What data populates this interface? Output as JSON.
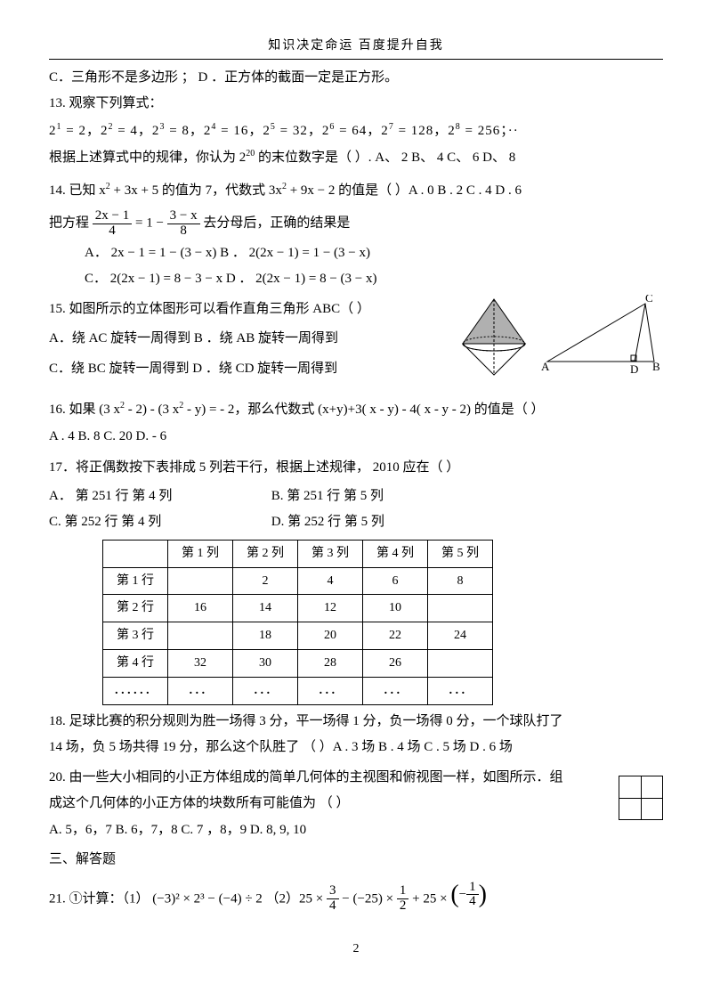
{
  "header": "知识决定命运   百度提升自我",
  "q12CD": "C．三角形不是多边形    ；    D    ．正方体的截面一定是正方形。",
  "q13_title": "13.  观察下列算式：",
  "q13_line": "2¹ = 2，2² = 4，2³ = 8，2⁴ = 16，2⁵ = 32，2⁶ = 64，2⁷ = 128，2⁸ = 256；··",
  "q13_ask": "根据上述算式中的规律，你认为    2²⁰ 的末位数字是（       ）. A、 2  B、 4  C、 6  D、 8",
  "q14": "14. 已知  x² + 3x + 5 的值为  7，代数式  3x² + 9x − 2 的值是（     ）A . 0   B   . 2   C   . 4   D  . 6",
  "qFrac_lead": "把方程",
  "qFrac_mid": "= 1 −",
  "qFrac_tail": "去分母后，正确的结果是",
  "qFrac_A": "A．  2x − 1 = 1 − (3 − x)       B     ．  2(2x − 1) = 1 − (3 − x)",
  "qFrac_C": "C．  2(2x − 1) = 8 − 3 −  x     D     ．  2(2x − 1) = 8 − (3 − x)",
  "q15_title": "15. 如图所示的立体图形可以看作直角三角形      ABC（      ）",
  "q15_AB": "A．绕  AC 旋转一周得到     B    ．绕  AB 旋转一周得到",
  "q15_CD": "C．绕  BC 旋转一周得到     D    ．绕  CD 旋转一周得到",
  "q16": "16.  如果  (3 x² - 2)  -  (3 x² - y) =  -  2，那么代数式   (x+y)+3(  x - y)  - 4( x - y - 2)  的值是（      ）",
  "q16_opts": "A . 4            B. 8            C. 20            D.  - 6",
  "q17": "17．将正偶数按下表排成     5 列若干行，根据上述规律，    2010 应在（          ）",
  "q17_A": "A．  第 251 行    第 4  列",
  "q17_B": "B.        第 251 行    第 5 列",
  "q17_C": "C.   第 252 行    第 4 列",
  "q17_D": "D.        第 252 行    第 5 列",
  "table": {
    "cols": [
      "",
      "第 1 列",
      "第 2 列",
      "第 3 列",
      "第 4 列",
      "第 5 列"
    ],
    "rows": [
      [
        "第 1 行",
        "",
        "2",
        "4",
        "6",
        "8"
      ],
      [
        "第 2 行",
        "16",
        "14",
        "12",
        "10",
        ""
      ],
      [
        "第 3 行",
        "",
        "18",
        "20",
        "22",
        "24"
      ],
      [
        "第 4 行",
        "32",
        "30",
        "28",
        "26",
        ""
      ],
      [
        "．．．．．．",
        "．．．",
        "．．．",
        "．．．",
        "．．．",
        "．．．"
      ]
    ]
  },
  "q18a": "18.   足球比赛的积分规则为胜一场得      3 分，平一场得   1 分，负一场得   0 分，一个球队打了",
  "q18b": "14 场，负  5 场共得   19 分，那么这个队胜了    （     ）A . 3   场 B . 4    场 C . 5   场 D . 6   场",
  "q20a": "20.  由一些大小相同的小正方体组成的简单几何体的主视图和俯视图一样，如图所示．组",
  "q20b": "成这个几何体的小正方体的块数所有可能值为          （       ）",
  "q20_opts": "A.   5，6，7   B.   6，7，8      C.   7    ，8，9    D.   8, 9, 10",
  "section3": "三、解答题",
  "q21_lead": "21.   ①计算：（1）  (−3)² × 2³ − (−4) ÷ 2        （2）25 ×",
  "q21_mid1": "− (−25) ×",
  "q21_mid2": "+ 25 ×",
  "pnum": "2",
  "cone": {
    "fill": "#b0b0b0",
    "stroke": "#000",
    "pointsTop": "50,5 15,55 85,55",
    "pointsBot": "50,90 15,55 85,55"
  },
  "tri": {
    "A": "A",
    "B": "B",
    "C": "C",
    "D": "D"
  }
}
